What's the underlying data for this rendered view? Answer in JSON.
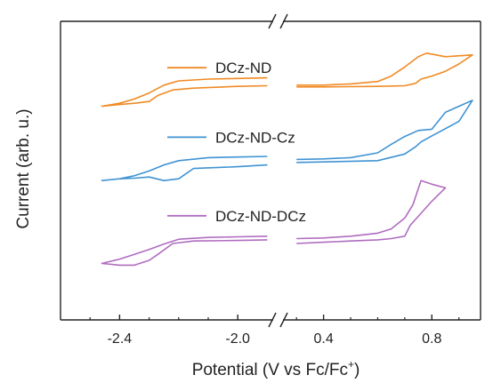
{
  "chart_data": {
    "type": "line",
    "title": "",
    "xlabel": "Potential (V vs Fc/Fc",
    "xlabel_sup": "+",
    "xlabel_end": ")",
    "ylabel": "Current (arb. u.)",
    "broken_x_axis": true,
    "axis_left_segment": {
      "xlim": [
        -2.6,
        -1.88
      ],
      "ticks": [
        -2.4,
        -2.0
      ],
      "tick_labels": [
        "-2.4",
        "-2.0"
      ]
    },
    "axis_right_segment": {
      "xlim": [
        0.25,
        0.98
      ],
      "ticks": [
        0.4,
        0.8
      ],
      "tick_labels": [
        "0.4",
        "0.8"
      ]
    },
    "y_ticks_shown": false,
    "grid": false,
    "legend": "inline labels left of each trace",
    "series": [
      {
        "name": "DCz-ND",
        "color": "#f08a24",
        "offset_unit": 3.0,
        "forward": [
          [
            -1.9,
            0.27
          ],
          [
            -2.0,
            0.26
          ],
          [
            -2.1,
            0.25
          ],
          [
            -2.2,
            0.22
          ],
          [
            -2.25,
            0.15
          ],
          [
            -2.3,
            0.02
          ],
          [
            -2.35,
            -0.08
          ],
          [
            -2.4,
            -0.15
          ],
          [
            -2.46,
            -0.2
          ]
        ],
        "reverse": [
          [
            -2.46,
            -0.2
          ],
          [
            -2.4,
            -0.17
          ],
          [
            -2.35,
            -0.15
          ],
          [
            -2.3,
            -0.12
          ],
          [
            -2.27,
            -0.02
          ],
          [
            -2.22,
            0.07
          ],
          [
            -2.15,
            0.1
          ],
          [
            -2.0,
            0.13
          ],
          [
            -1.9,
            0.14
          ]
        ],
        "forward_right": [
          [
            0.3,
            0.15
          ],
          [
            0.4,
            0.15
          ],
          [
            0.5,
            0.17
          ],
          [
            0.6,
            0.21
          ],
          [
            0.65,
            0.3
          ],
          [
            0.7,
            0.45
          ],
          [
            0.75,
            0.62
          ],
          [
            0.78,
            0.68
          ],
          [
            0.85,
            0.62
          ],
          [
            0.95,
            0.65
          ]
        ],
        "reverse_right": [
          [
            0.95,
            0.65
          ],
          [
            0.9,
            0.5
          ],
          [
            0.85,
            0.38
          ],
          [
            0.8,
            0.3
          ],
          [
            0.76,
            0.25
          ],
          [
            0.74,
            0.18
          ],
          [
            0.7,
            0.14
          ],
          [
            0.6,
            0.13
          ],
          [
            0.4,
            0.12
          ],
          [
            0.3,
            0.12
          ]
        ]
      },
      {
        "name": "DCz-ND-Cz",
        "color": "#3f93d3",
        "offset_unit": 1.85,
        "forward": [
          [
            -1.9,
            0.12
          ],
          [
            -2.0,
            0.11
          ],
          [
            -2.1,
            0.1
          ],
          [
            -2.2,
            0.05
          ],
          [
            -2.25,
            -0.02
          ],
          [
            -2.3,
            -0.12
          ],
          [
            -2.35,
            -0.2
          ],
          [
            -2.4,
            -0.25
          ],
          [
            -2.46,
            -0.28
          ]
        ],
        "reverse": [
          [
            -2.46,
            -0.28
          ],
          [
            -2.4,
            -0.25
          ],
          [
            -2.35,
            -0.24
          ],
          [
            -2.3,
            -0.22
          ],
          [
            -2.25,
            -0.28
          ],
          [
            -2.2,
            -0.25
          ],
          [
            -2.15,
            -0.08
          ],
          [
            -2.0,
            -0.05
          ],
          [
            -1.9,
            -0.02
          ]
        ],
        "forward_right": [
          [
            0.3,
            0.07
          ],
          [
            0.4,
            0.08
          ],
          [
            0.5,
            0.1
          ],
          [
            0.6,
            0.18
          ],
          [
            0.65,
            0.32
          ],
          [
            0.7,
            0.45
          ],
          [
            0.75,
            0.55
          ],
          [
            0.8,
            0.57
          ],
          [
            0.85,
            0.85
          ],
          [
            0.9,
            0.95
          ],
          [
            0.95,
            1.05
          ]
        ],
        "reverse_right": [
          [
            0.95,
            1.05
          ],
          [
            0.9,
            0.7
          ],
          [
            0.85,
            0.58
          ],
          [
            0.8,
            0.46
          ],
          [
            0.76,
            0.36
          ],
          [
            0.74,
            0.28
          ],
          [
            0.7,
            0.16
          ],
          [
            0.6,
            0.05
          ],
          [
            0.4,
            0.03
          ],
          [
            0.3,
            0.02
          ]
        ]
      },
      {
        "name": "DCz-ND-DCz",
        "color": "#b06cc0",
        "offset_unit": 0.55,
        "forward": [
          [
            -1.9,
            0.1
          ],
          [
            -2.0,
            0.09
          ],
          [
            -2.1,
            0.08
          ],
          [
            -2.2,
            0.05
          ],
          [
            -2.25,
            -0.03
          ],
          [
            -2.3,
            -0.12
          ],
          [
            -2.35,
            -0.2
          ],
          [
            -2.4,
            -0.28
          ],
          [
            -2.46,
            -0.35
          ]
        ],
        "reverse": [
          [
            -2.46,
            -0.35
          ],
          [
            -2.4,
            -0.38
          ],
          [
            -2.35,
            -0.38
          ],
          [
            -2.3,
            -0.3
          ],
          [
            -2.27,
            -0.2
          ],
          [
            -2.22,
            -0.02
          ],
          [
            -2.15,
            0.02
          ],
          [
            -2.0,
            0.03
          ],
          [
            -1.9,
            0.04
          ]
        ],
        "forward_right": [
          [
            0.3,
            0.06
          ],
          [
            0.4,
            0.07
          ],
          [
            0.5,
            0.1
          ],
          [
            0.6,
            0.15
          ],
          [
            0.65,
            0.22
          ],
          [
            0.7,
            0.4
          ],
          [
            0.73,
            0.62
          ],
          [
            0.76,
            1.02
          ],
          [
            0.8,
            0.96
          ],
          [
            0.85,
            0.9
          ]
        ],
        "reverse_right": [
          [
            0.85,
            0.9
          ],
          [
            0.8,
            0.68
          ],
          [
            0.76,
            0.48
          ],
          [
            0.72,
            0.28
          ],
          [
            0.7,
            0.1
          ],
          [
            0.65,
            0.06
          ],
          [
            0.6,
            0.04
          ],
          [
            0.5,
            0.02
          ],
          [
            0.4,
            0.0
          ],
          [
            0.3,
            -0.02
          ]
        ]
      }
    ]
  }
}
